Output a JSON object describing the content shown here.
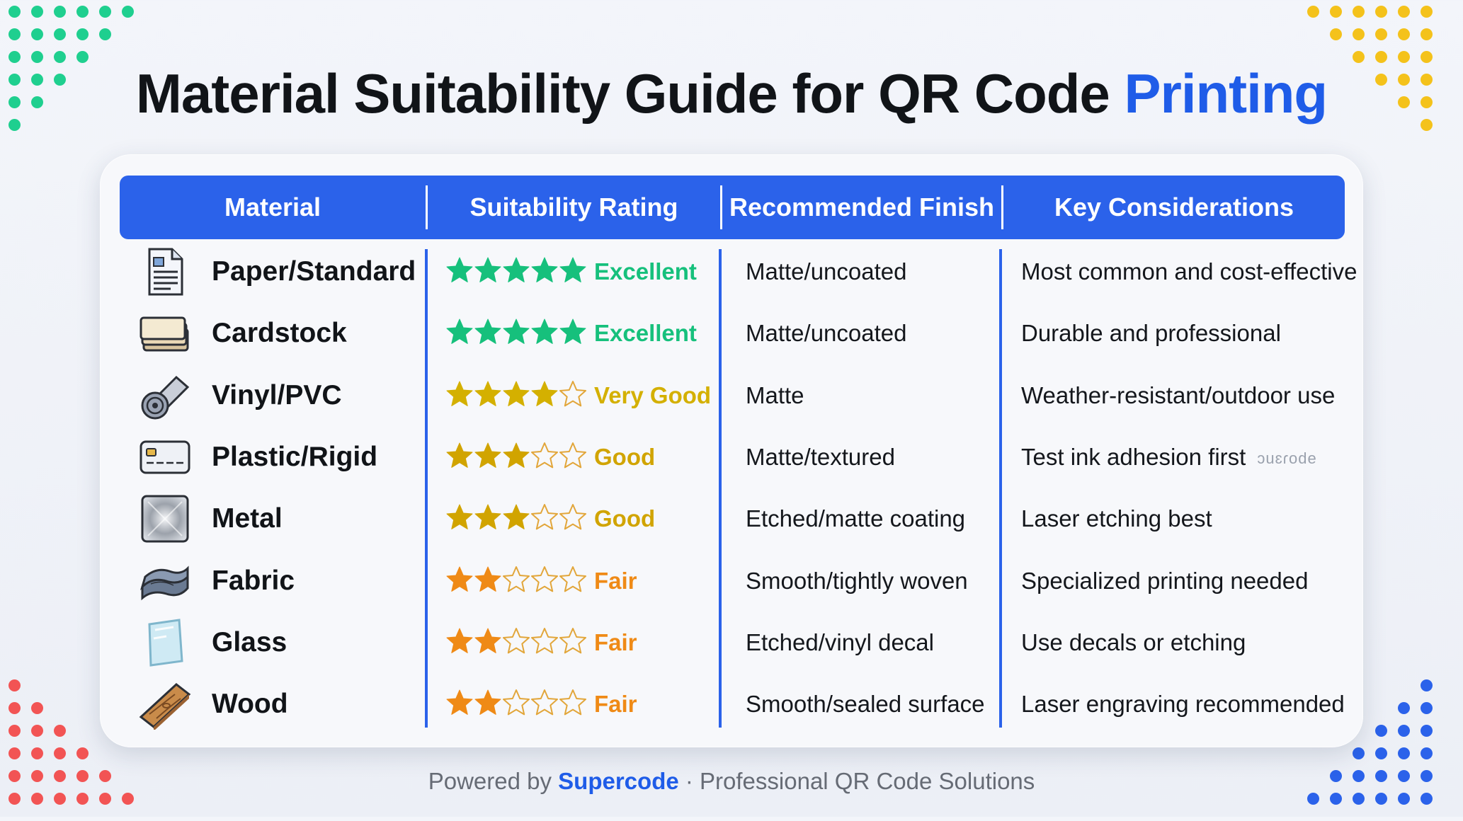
{
  "title": {
    "main": "Material Suitability Guide for QR Code ",
    "accent": "Printing"
  },
  "colors": {
    "accent": "#1f5ce8",
    "header": "#2b62ea",
    "excellent": "#16c07c",
    "very_good": "#d4b000",
    "good": "#d1a400",
    "fair": "#ef8a16",
    "dots_green": "#1fcf8f",
    "dots_yellow": "#f4c21b",
    "dots_red": "#f25454",
    "dots_blue": "#2b62ea"
  },
  "table": {
    "headers": [
      "Material",
      "Suitability Rating",
      "Recommended Finish",
      "Key Considerations"
    ],
    "rows": [
      {
        "icon": "document-icon",
        "material": "Paper/Standard",
        "stars": 5,
        "rating": "Excellent",
        "tone": "excellent",
        "finish": "Matte/uncoated",
        "consideration": "Most common and cost-effective",
        "mark": ""
      },
      {
        "icon": "cardstock-icon",
        "material": "Cardstock",
        "stars": 5,
        "rating": "Excellent",
        "tone": "excellent",
        "finish": "Matte/uncoated",
        "consideration": "Durable and professional",
        "mark": ""
      },
      {
        "icon": "vinyl-roll-icon",
        "material": "Vinyl/PVC",
        "stars": 4,
        "rating": "Very Good",
        "tone": "very_good",
        "finish": "Matte",
        "consideration": "Weather-resistant/outdoor use",
        "mark": ""
      },
      {
        "icon": "plastic-card-icon",
        "material": "Plastic/Rigid",
        "stars": 3,
        "rating": "Good",
        "tone": "good",
        "finish": "Matte/textured",
        "consideration": "Test ink adhesion first",
        "mark": "ɔuɛɾode"
      },
      {
        "icon": "metal-plate-icon",
        "material": "Metal",
        "stars": 3,
        "rating": "Good",
        "tone": "good",
        "finish": "Etched/matte coating",
        "consideration": "Laser etching best",
        "mark": ""
      },
      {
        "icon": "fabric-icon",
        "material": "Fabric",
        "stars": 2,
        "rating": "Fair",
        "tone": "fair",
        "finish": "Smooth/tightly woven",
        "consideration": "Specialized printing needed",
        "mark": ""
      },
      {
        "icon": "glass-pane-icon",
        "material": "Glass",
        "stars": 2,
        "rating": "Fair",
        "tone": "fair",
        "finish": "Etched/vinyl decal",
        "consideration": "Use decals or etching",
        "mark": ""
      },
      {
        "icon": "wood-plank-icon",
        "material": "Wood",
        "stars": 2,
        "rating": "Fair",
        "tone": "fair",
        "finish": "Smooth/sealed surface",
        "consideration": "Laser engraving recommended",
        "mark": ""
      }
    ]
  },
  "footer": {
    "prefix": "Powered by ",
    "brand": "Supercode",
    "suffix": " · Professional QR Code Solutions"
  }
}
